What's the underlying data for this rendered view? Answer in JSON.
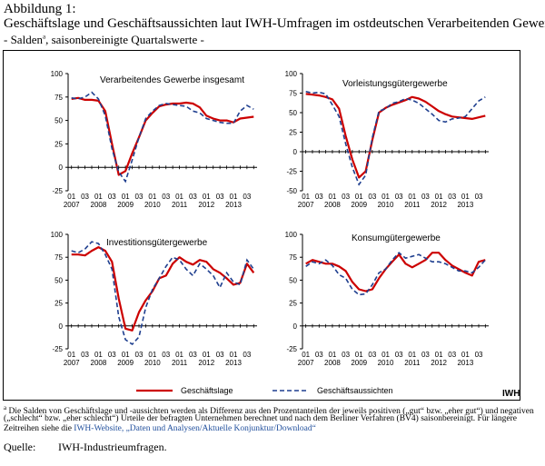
{
  "header": {
    "label": "Abbildung 1:",
    "title": "Geschäftslage und Geschäftsaussichten laut IWH-Umfragen im ostdeutschen Verarbeitenden Gewerbe",
    "subtitle_prefix": "- Salden",
    "subtitle_sup": "a",
    "subtitle_suffix": ", saisonbereinigte Quartalswerte -"
  },
  "colors": {
    "geschaeftslage": "#cc0000",
    "geschaeftsaussichten": "#1f3f8f",
    "axis": "#000000"
  },
  "legend": {
    "lage": "Geschäftslage",
    "aussichten": "Geschäftsaussichten"
  },
  "logo": "IWH",
  "chart_data": [
    {
      "type": "line",
      "title": "Verarbeitendes Gewerbe insgesamt",
      "ylim": [
        -25,
        100
      ],
      "yticks": [
        -25,
        0,
        25,
        50,
        75,
        100
      ],
      "x_quarters": [
        "2007Q1",
        "2007Q2",
        "2007Q3",
        "2007Q4",
        "2008Q1",
        "2008Q2",
        "2008Q3",
        "2008Q4",
        "2009Q1",
        "2009Q2",
        "2009Q3",
        "2009Q4",
        "2010Q1",
        "2010Q2",
        "2010Q3",
        "2010Q4",
        "2011Q1",
        "2011Q2",
        "2011Q3",
        "2011Q4",
        "2012Q1",
        "2012Q2",
        "2012Q3",
        "2012Q4",
        "2013Q1",
        "2013Q2",
        "2013Q3",
        "2013Q4"
      ],
      "xtick_quarter_labels": [
        "01",
        "03",
        "01",
        "03",
        "01",
        "03",
        "01",
        "03",
        "01",
        "03",
        "01",
        "03",
        "01",
        "03"
      ],
      "xtick_year_labels": [
        "2007",
        "2008",
        "2009",
        "2010",
        "2011",
        "2012",
        "2013"
      ],
      "series": [
        {
          "name": "Geschäftslage",
          "values": [
            73,
            74,
            72,
            72,
            71,
            60,
            25,
            -8,
            -4,
            15,
            32,
            50,
            58,
            65,
            67,
            68,
            68,
            69,
            68,
            64,
            55,
            52,
            50,
            50,
            48,
            52,
            53,
            54
          ]
        },
        {
          "name": "Geschäftsaussichten",
          "values": [
            74,
            73,
            75,
            80,
            73,
            55,
            20,
            -5,
            -15,
            8,
            32,
            52,
            60,
            66,
            68,
            67,
            66,
            65,
            60,
            58,
            52,
            50,
            48,
            47,
            47,
            60,
            66,
            62
          ]
        }
      ]
    },
    {
      "type": "line",
      "title": "Vorleistungsgütergewerbe",
      "ylim": [
        -50,
        100
      ],
      "yticks": [
        -50,
        -25,
        0,
        25,
        50,
        75,
        100
      ],
      "x_quarters": [
        "2007Q1",
        "2007Q2",
        "2007Q3",
        "2007Q4",
        "2008Q1",
        "2008Q2",
        "2008Q3",
        "2008Q4",
        "2009Q1",
        "2009Q2",
        "2009Q3",
        "2009Q4",
        "2010Q1",
        "2010Q2",
        "2010Q3",
        "2010Q4",
        "2011Q1",
        "2011Q2",
        "2011Q3",
        "2011Q4",
        "2012Q1",
        "2012Q2",
        "2012Q3",
        "2012Q4",
        "2013Q1",
        "2013Q2",
        "2013Q3",
        "2013Q4"
      ],
      "xtick_quarter_labels": [
        "01",
        "03",
        "01",
        "03",
        "01",
        "03",
        "01",
        "03",
        "01",
        "03",
        "01",
        "03",
        "01",
        "03"
      ],
      "xtick_year_labels": [
        "2007",
        "2008",
        "2009",
        "2010",
        "2011",
        "2012",
        "2013"
      ],
      "series": [
        {
          "name": "Geschäftslage",
          "values": [
            74,
            73,
            72,
            70,
            67,
            55,
            20,
            -10,
            -33,
            -25,
            15,
            50,
            56,
            60,
            63,
            66,
            70,
            68,
            64,
            58,
            52,
            48,
            45,
            44,
            43,
            42,
            44,
            46
          ]
        },
        {
          "name": "Geschäftsaussichten",
          "values": [
            77,
            75,
            76,
            74,
            60,
            45,
            10,
            -20,
            -42,
            -30,
            18,
            52,
            55,
            62,
            64,
            68,
            66,
            62,
            55,
            48,
            40,
            38,
            42,
            43,
            45,
            55,
            65,
            70
          ]
        }
      ]
    },
    {
      "type": "line",
      "title": "Investitionsgütergewerbe",
      "ylim": [
        -25,
        100
      ],
      "yticks": [
        -25,
        0,
        25,
        50,
        75,
        100
      ],
      "x_quarters": [
        "2007Q1",
        "2007Q2",
        "2007Q3",
        "2007Q4",
        "2008Q1",
        "2008Q2",
        "2008Q3",
        "2008Q4",
        "2009Q1",
        "2009Q2",
        "2009Q3",
        "2009Q4",
        "2010Q1",
        "2010Q2",
        "2010Q3",
        "2010Q4",
        "2011Q1",
        "2011Q2",
        "2011Q3",
        "2011Q4",
        "2012Q1",
        "2012Q2",
        "2012Q3",
        "2012Q4",
        "2013Q1",
        "2013Q2",
        "2013Q3",
        "2013Q4"
      ],
      "xtick_quarter_labels": [
        "01",
        "03",
        "01",
        "03",
        "01",
        "03",
        "01",
        "03",
        "01",
        "03",
        "01",
        "03",
        "01",
        "03"
      ],
      "xtick_year_labels": [
        "2007",
        "2008",
        "2009",
        "2010",
        "2011",
        "2012",
        "2013"
      ],
      "series": [
        {
          "name": "Geschäftslage",
          "values": [
            78,
            78,
            77,
            82,
            86,
            82,
            70,
            30,
            -3,
            -5,
            15,
            28,
            38,
            52,
            55,
            68,
            75,
            70,
            67,
            72,
            70,
            62,
            58,
            52,
            45,
            47,
            68,
            58
          ]
        },
        {
          "name": "Geschäftsaussichten",
          "values": [
            82,
            80,
            84,
            92,
            90,
            78,
            62,
            10,
            -15,
            -20,
            -12,
            20,
            40,
            52,
            65,
            75,
            72,
            62,
            55,
            68,
            62,
            55,
            42,
            58,
            48,
            45,
            72,
            62
          ]
        }
      ]
    },
    {
      "type": "line",
      "title": "Konsumgütergewerbe",
      "ylim": [
        -25,
        100
      ],
      "yticks": [
        -25,
        0,
        25,
        50,
        75,
        100
      ],
      "x_quarters": [
        "2007Q1",
        "2007Q2",
        "2007Q3",
        "2007Q4",
        "2008Q1",
        "2008Q2",
        "2008Q3",
        "2008Q4",
        "2009Q1",
        "2009Q2",
        "2009Q3",
        "2009Q4",
        "2010Q1",
        "2010Q2",
        "2010Q3",
        "2010Q4",
        "2011Q1",
        "2011Q2",
        "2011Q3",
        "2011Q4",
        "2012Q1",
        "2012Q2",
        "2012Q3",
        "2012Q4",
        "2013Q1",
        "2013Q2",
        "2013Q3",
        "2013Q4"
      ],
      "xtick_quarter_labels": [
        "01",
        "03",
        "01",
        "03",
        "01",
        "03",
        "01",
        "03",
        "01",
        "03",
        "01",
        "03",
        "01",
        "03"
      ],
      "xtick_year_labels": [
        "2007",
        "2008",
        "2009",
        "2010",
        "2011",
        "2012",
        "2013"
      ],
      "series": [
        {
          "name": "Geschäftslage",
          "values": [
            68,
            72,
            70,
            68,
            68,
            65,
            60,
            48,
            40,
            38,
            40,
            52,
            62,
            70,
            78,
            68,
            64,
            68,
            72,
            80,
            80,
            72,
            66,
            62,
            58,
            55,
            70,
            72
          ]
        },
        {
          "name": "Geschäftsaussichten",
          "values": [
            65,
            70,
            68,
            72,
            66,
            56,
            52,
            40,
            34,
            35,
            45,
            58,
            62,
            72,
            80,
            74,
            76,
            78,
            74,
            70,
            70,
            68,
            64,
            60,
            60,
            58,
            64,
            72
          ]
        }
      ]
    }
  ],
  "footnote": {
    "sup": "a",
    "line1": " Die Salden von Geschäftslage und -aussichten werden als Differenz aus den Prozentanteilen der jeweils positiven („gut“ bzw. „eher gut“) und negativen",
    "line2": "(„schlecht“ bzw. „eher schlecht“) Urteile der befragten Unternehmen berechnet und nach dem Berliner Verfahren (BV4) saisonbereinigt. Für längere",
    "line3_prefix": "Zeitreihen siehe die ",
    "line3_link": "IWH-Website, „Daten und Analysen/Aktuelle Konjunktur/Download“"
  },
  "source": {
    "label": "Quelle:",
    "value": "IWH-Industrieumfragen."
  }
}
